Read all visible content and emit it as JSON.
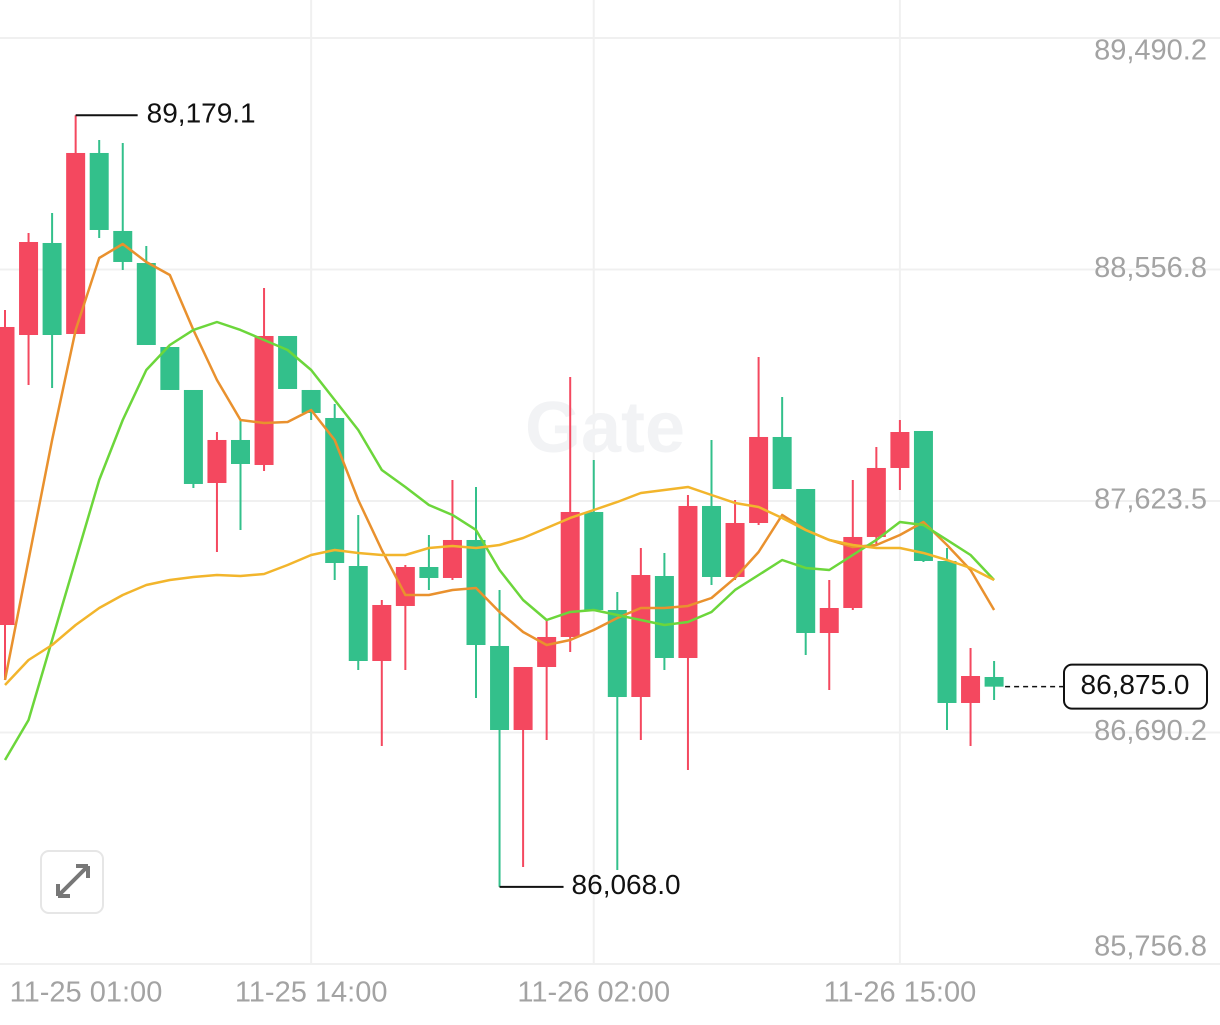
{
  "chart_data": {
    "type": "candlestick",
    "watermark": "Gate",
    "categories": [
      "11-25 01:00",
      null,
      null,
      null,
      null,
      null,
      null,
      null,
      null,
      null,
      null,
      null,
      null,
      "11-25 14:00",
      null,
      null,
      null,
      null,
      null,
      null,
      null,
      null,
      null,
      null,
      null,
      "11-26 02:00",
      null,
      null,
      null,
      null,
      null,
      null,
      null,
      null,
      null,
      null,
      null,
      null,
      "11-26 15:00",
      null,
      null,
      null,
      null
    ],
    "up_color": "#f4485f",
    "down_color": "#33c08b",
    "open": [
      87123.6,
      88292.9,
      88663.9,
      88297.0,
      89026.8,
      88712.3,
      88583.2,
      88244.5,
      88071.2,
      87696.2,
      87869.6,
      87768.8,
      88288.9,
      88071.2,
      87958.3,
      87361.5,
      86978.5,
      87200.3,
      87357.5,
      87313.2,
      87466.4,
      87039.0,
      86700.3,
      86954.3,
      87075.3,
      87579.3,
      87184.1,
      86833.3,
      87321.2,
      86990.6,
      87603.5,
      87317.2,
      87534.9,
      87881.7,
      87672.0,
      87091.4,
      87192.2,
      87478.5,
      87756.7,
      87905.9,
      87381.7,
      86809.2,
      86914.0
    ],
    "high": [
      88393.7,
      88704.2,
      88784.8,
      89179.1,
      89079.2,
      89067.1,
      88651.8,
      88244.5,
      88071.2,
      87901.8,
      87950.2,
      88482.4,
      88288.9,
      88071.2,
      88014.7,
      87567.2,
      87224.4,
      87365.6,
      87486.5,
      87708.3,
      87680.1,
      87264.8,
      86954.3,
      87143.8,
      88123.6,
      87788.9,
      87256.7,
      87434.1,
      87414.0,
      87647.8,
      87869.6,
      87627.6,
      88204.2,
      88042.9,
      87672.0,
      87305.1,
      87708.3,
      87841.3,
      87950.2,
      87905.9,
      87434.1,
      87030.9,
      86978.5
    ],
    "low": [
      86901.9,
      88091.3,
      88079.2,
      88297.0,
      88684.0,
      88555.0,
      88252.6,
      88071.2,
      87676.0,
      87418.0,
      87506.7,
      87744.6,
      88075.2,
      87950.2,
      87305.1,
      86942.2,
      86635.8,
      86942.2,
      87264.8,
      87305.1,
      86829.3,
      86068.0,
      86147.9,
      86660.0,
      87014.8,
      87184.1,
      86135.8,
      86660.0,
      86942.2,
      86539.0,
      87284.9,
      87305.1,
      87526.8,
      87672.0,
      87002.7,
      86861.6,
      87184.1,
      87446.2,
      87668.0,
      87377.7,
      86700.3,
      86635.8,
      86821.2
    ],
    "close": [
      88325.2,
      88667.9,
      88292.9,
      89026.8,
      88716.3,
      88587.3,
      88252.6,
      88071.2,
      87692.2,
      87869.6,
      87772.8,
      88288.9,
      88075.2,
      87978.4,
      87373.6,
      86978.5,
      87204.3,
      87357.5,
      87313.2,
      87466.4,
      87043.0,
      86700.3,
      86954.3,
      87075.3,
      87579.3,
      87184.1,
      86833.3,
      87325.2,
      86990.6,
      87603.5,
      87317.2,
      87534.9,
      87881.7,
      87672.0,
      87091.4,
      87192.2,
      87478.5,
      87756.7,
      87901.8,
      87381.7,
      86809.2,
      86918.0,
      86875.0
    ],
    "lines": [
      {
        "color": "#e9912e",
        "values": [
          86901.9,
          87385.7,
          87869.6,
          88313.1,
          88603.4,
          88659.8,
          88587.3,
          88534.8,
          88313.1,
          88111.5,
          87950.2,
          87938.1,
          87942.1,
          87990.5,
          87869.6,
          87627.6,
          87426.0,
          87244.6,
          87244.6,
          87264.8,
          87272.8,
          87176.1,
          87095.4,
          87043.0,
          87063.2,
          87103.5,
          87151.9,
          87192.2,
          87192.2,
          87200.3,
          87232.5,
          87313.2,
          87418.0,
          87567.2,
          87506.7,
          87466.4,
          87438.1,
          87446.2,
          87486.5,
          87538.9,
          87446.2,
          87345.4,
          87184.1
        ]
      },
      {
        "color": "#6cd63b",
        "values": [
          86579.3,
          86740.6,
          87063.2,
          87385.7,
          87708.3,
          87950.2,
          88151.8,
          88252.6,
          88313.1,
          88345.3,
          88313.1,
          88272.8,
          88232.4,
          88151.8,
          88030.8,
          87909.9,
          87748.6,
          87680.1,
          87607.5,
          87567.2,
          87506.7,
          87345.4,
          87224.4,
          87143.8,
          87176.1,
          87184.1,
          87164.0,
          87143.8,
          87123.6,
          87135.7,
          87176.1,
          87264.8,
          87325.2,
          87385.7,
          87353.5,
          87345.4,
          87405.9,
          87466.4,
          87538.9,
          87526.8,
          87466.4,
          87405.9,
          87305.1
        ]
      },
      {
        "color": "#f2b52c",
        "values": [
          86881.7,
          86982.5,
          87043.0,
          87123.6,
          87192.2,
          87244.6,
          87284.9,
          87305.1,
          87317.2,
          87325.2,
          87321.2,
          87329.3,
          87365.6,
          87405.9,
          87426.0,
          87414.0,
          87405.9,
          87405.9,
          87434.1,
          87442.2,
          87434.1,
          87446.2,
          87474.4,
          87514.7,
          87555.1,
          87587.3,
          87619.6,
          87655.9,
          87668.0,
          87680.1,
          87647.8,
          87615.6,
          87599.4,
          87555.1,
          87506.7,
          87466.4,
          87446.2,
          87434.1,
          87434.1,
          87414.0,
          87385.7,
          87353.5,
          87305.1
        ]
      }
    ],
    "high_label": {
      "value": 89179.1,
      "label": "89,179.1"
    },
    "low_label": {
      "value": 86068.0,
      "label": "86,068.0"
    },
    "last_price": {
      "value": 86875.0,
      "label": "86,875.0"
    },
    "ylim": [
      85756.8,
      89643.6
    ],
    "yticks": [
      {
        "value": 89490.2,
        "label": "89,490.2"
      },
      {
        "value": 88556.8,
        "label": "88,556.8"
      },
      {
        "value": 87623.5,
        "label": "87,623.5"
      },
      {
        "value": 86690.2,
        "label": "86,690.2"
      },
      {
        "value": 85756.8,
        "label": "85,756.8"
      }
    ],
    "grid": true
  }
}
